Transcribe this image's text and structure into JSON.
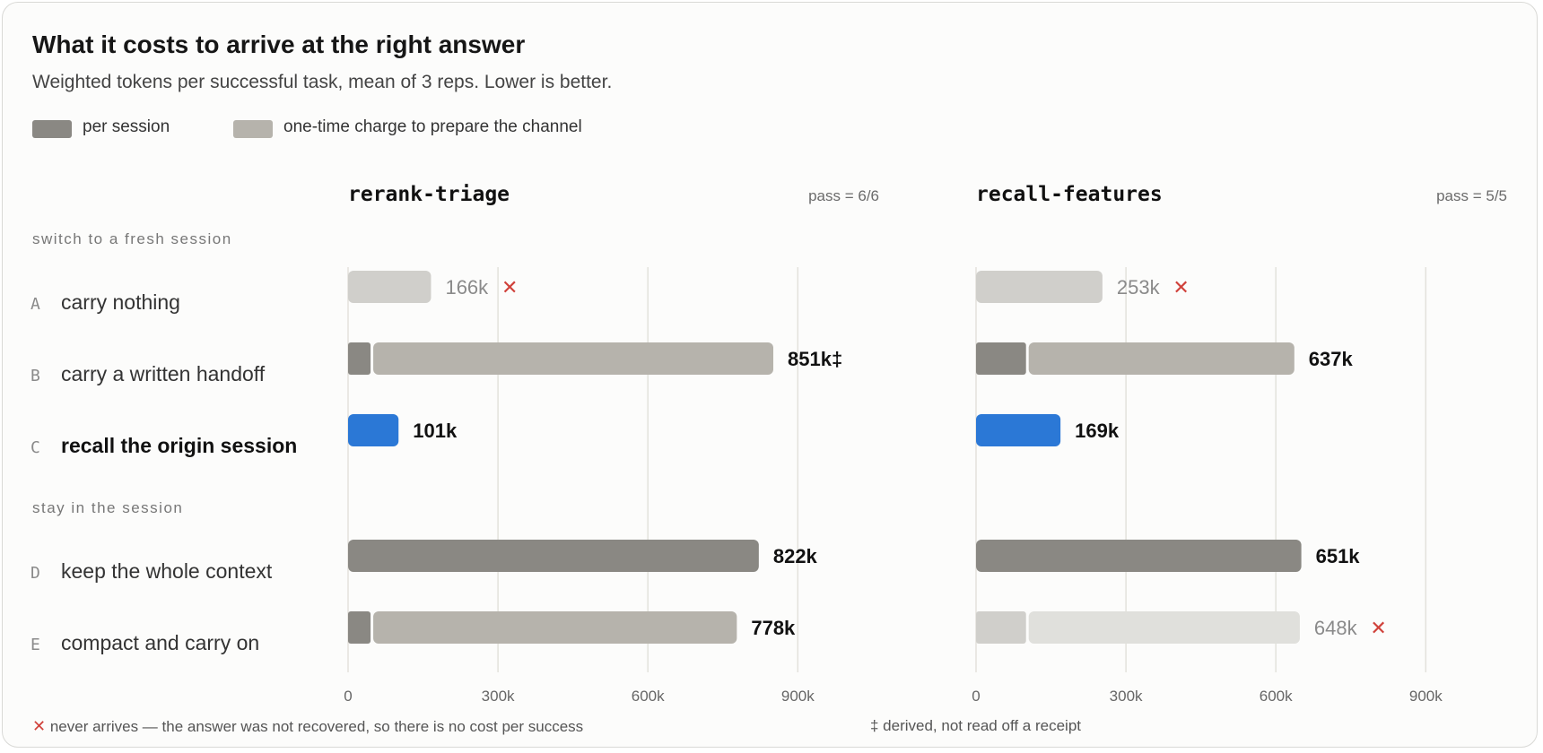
{
  "title": "What it costs to arrive at the right answer",
  "subtitle": "Weighted tokens per successful task, mean of 3 reps. Lower is better.",
  "legend": [
    {
      "label": "per session",
      "color": "#8a8883"
    },
    {
      "label": "one-time charge to prepare the channel",
      "color": "#b6b3ac"
    }
  ],
  "groups": [
    {
      "label": "switch to a fresh session"
    },
    {
      "label": "stay in the session"
    }
  ],
  "rows": [
    {
      "letter": "A",
      "label": "carry nothing",
      "bold": false
    },
    {
      "letter": "B",
      "label": "carry a written handoff",
      "bold": false
    },
    {
      "letter": "C",
      "label": "recall the origin session",
      "bold": true
    },
    {
      "letter": "D",
      "label": "keep the whole context",
      "bold": false
    },
    {
      "letter": "E",
      "label": "compact and carry on",
      "bold": false
    }
  ],
  "footnotes": {
    "fail_mark": "✕",
    "fail_text": "never arrives — the answer was not recovered, so there is no cost per success",
    "derived_text": "‡ derived, not read off a receipt"
  },
  "colors": {
    "per_session": "#8a8883",
    "one_time": "#b6b3ac",
    "fail_bar": "#d0cfcb",
    "fail_bar_light": "#e0e0dc",
    "highlight": "#2b78d6",
    "fail_mark": "#d0413a",
    "grid": "#e3e2dc"
  },
  "chart_data": [
    {
      "type": "bar",
      "title": "rerank-triage",
      "pass_label": "pass = 6/6",
      "xlim": [
        0,
        1000000
      ],
      "ticks": [
        0,
        300000,
        600000,
        900000
      ],
      "tick_labels": [
        "0",
        "300k",
        "600k",
        "900k"
      ],
      "bars": [
        {
          "row": "A",
          "total": 166000,
          "label": "166k",
          "failed": true
        },
        {
          "row": "B",
          "per_session": 45000,
          "one_time": 806000,
          "total": 851000,
          "label": "851k‡",
          "failed": false
        },
        {
          "row": "C",
          "total": 101000,
          "label": "101k",
          "highlight": true,
          "failed": false
        },
        {
          "row": "D",
          "per_session": 822000,
          "total": 822000,
          "label": "822k",
          "failed": false
        },
        {
          "row": "E",
          "per_session": 45000,
          "one_time": 733000,
          "total": 778000,
          "label": "778k",
          "failed": false
        }
      ]
    },
    {
      "type": "bar",
      "title": "recall-features",
      "pass_label": "pass = 5/5",
      "xlim": [
        0,
        1000000
      ],
      "ticks": [
        0,
        300000,
        600000,
        900000
      ],
      "tick_labels": [
        "0",
        "300k",
        "600k",
        "900k"
      ],
      "bars": [
        {
          "row": "A",
          "total": 253000,
          "label": "253k",
          "failed": true
        },
        {
          "row": "B",
          "per_session": 100000,
          "one_time": 537000,
          "total": 637000,
          "label": "637k",
          "failed": false
        },
        {
          "row": "C",
          "total": 169000,
          "label": "169k",
          "highlight": true,
          "failed": false
        },
        {
          "row": "D",
          "per_session": 651000,
          "total": 651000,
          "label": "651k",
          "failed": false
        },
        {
          "row": "E",
          "per_session": 100000,
          "one_time": 548000,
          "total": 648000,
          "label": "648k",
          "failed": true
        }
      ]
    }
  ]
}
